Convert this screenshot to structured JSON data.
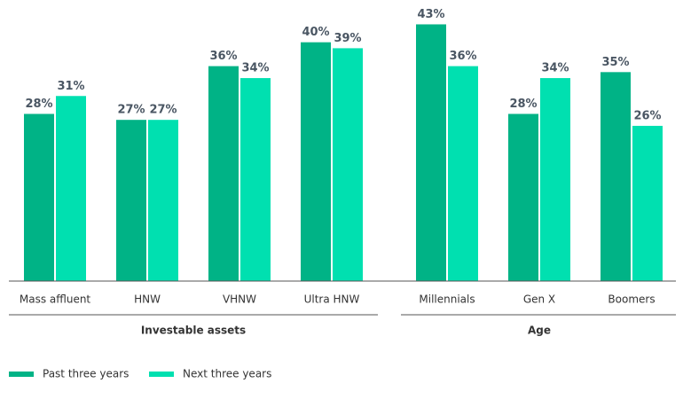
{
  "chart_data": {
    "type": "bar",
    "groups": [
      {
        "name": "Investable assets",
        "categories": [
          "Mass affluent",
          "HNW",
          "VHNW",
          "Ultra HNW"
        ]
      },
      {
        "name": "Age",
        "categories": [
          "Millennials",
          "Gen X",
          "Boomers"
        ]
      }
    ],
    "series": [
      {
        "name": "Past three years",
        "color": "#00b386",
        "values": [
          28,
          27,
          36,
          40,
          43,
          28,
          35
        ],
        "value_labels": [
          "28%",
          "27%",
          "36%",
          "40%",
          "43%",
          "28%",
          "35%"
        ]
      },
      {
        "name": "Next three years",
        "color": "#00e0b0",
        "values": [
          31,
          27,
          34,
          39,
          36,
          34,
          26
        ],
        "value_labels": [
          "31%",
          "27%",
          "34%",
          "39%",
          "36%",
          "34%",
          "26%"
        ]
      }
    ],
    "ylim": [
      0,
      45
    ]
  }
}
